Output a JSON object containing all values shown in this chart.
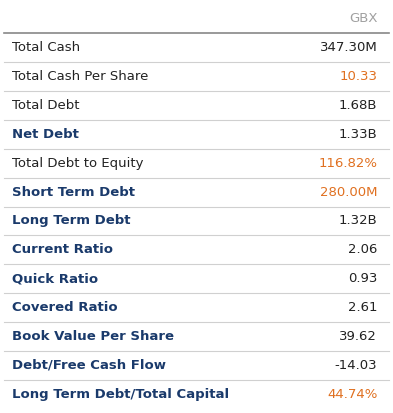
{
  "header": "GBX",
  "header_color": "#a0a0a0",
  "rows": [
    {
      "label": "Total Cash",
      "value": "347.30M",
      "label_bold": false,
      "label_color": "#222222",
      "value_color": "#222222"
    },
    {
      "label": "Total Cash Per Share",
      "value": "10.33",
      "label_bold": false,
      "label_color": "#222222",
      "value_color": "#e07020"
    },
    {
      "label": "Total Debt",
      "value": "1.68B",
      "label_bold": false,
      "label_color": "#222222",
      "value_color": "#222222"
    },
    {
      "label": "Net Debt",
      "value": "1.33B",
      "label_bold": true,
      "label_color": "#1a3a6b",
      "value_color": "#222222"
    },
    {
      "label": "Total Debt to Equity",
      "value": "116.82%",
      "label_bold": false,
      "label_color": "#222222",
      "value_color": "#e07020"
    },
    {
      "label": "Short Term Debt",
      "value": "280.00M",
      "label_bold": true,
      "label_color": "#1a3a6b",
      "value_color": "#e07020"
    },
    {
      "label": "Long Term Debt",
      "value": "1.32B",
      "label_bold": true,
      "label_color": "#1a3a6b",
      "value_color": "#222222"
    },
    {
      "label": "Current Ratio",
      "value": "2.06",
      "label_bold": true,
      "label_color": "#1a3a6b",
      "value_color": "#222222"
    },
    {
      "label": "Quick Ratio",
      "value": "0.93",
      "label_bold": true,
      "label_color": "#1a3a6b",
      "value_color": "#222222"
    },
    {
      "label": "Covered Ratio",
      "value": "2.61",
      "label_bold": true,
      "label_color": "#1a3a6b",
      "value_color": "#222222"
    },
    {
      "label": "Book Value Per Share",
      "value": "39.62",
      "label_bold": true,
      "label_color": "#1a3a6b",
      "value_color": "#222222"
    },
    {
      "label": "Debt/Free Cash Flow",
      "value": "-14.03",
      "label_bold": true,
      "label_color": "#1a3a6b",
      "value_color": "#222222"
    },
    {
      "label": "Long Term Debt/Total Capital",
      "value": "44.74%",
      "label_bold": true,
      "label_color": "#1a3a6b",
      "value_color": "#e07020"
    }
  ],
  "bg_color": "#ffffff",
  "line_color": "#d0d0d0",
  "header_line_color": "#888888",
  "font_size": 9.5,
  "header_font_size": 9.5
}
